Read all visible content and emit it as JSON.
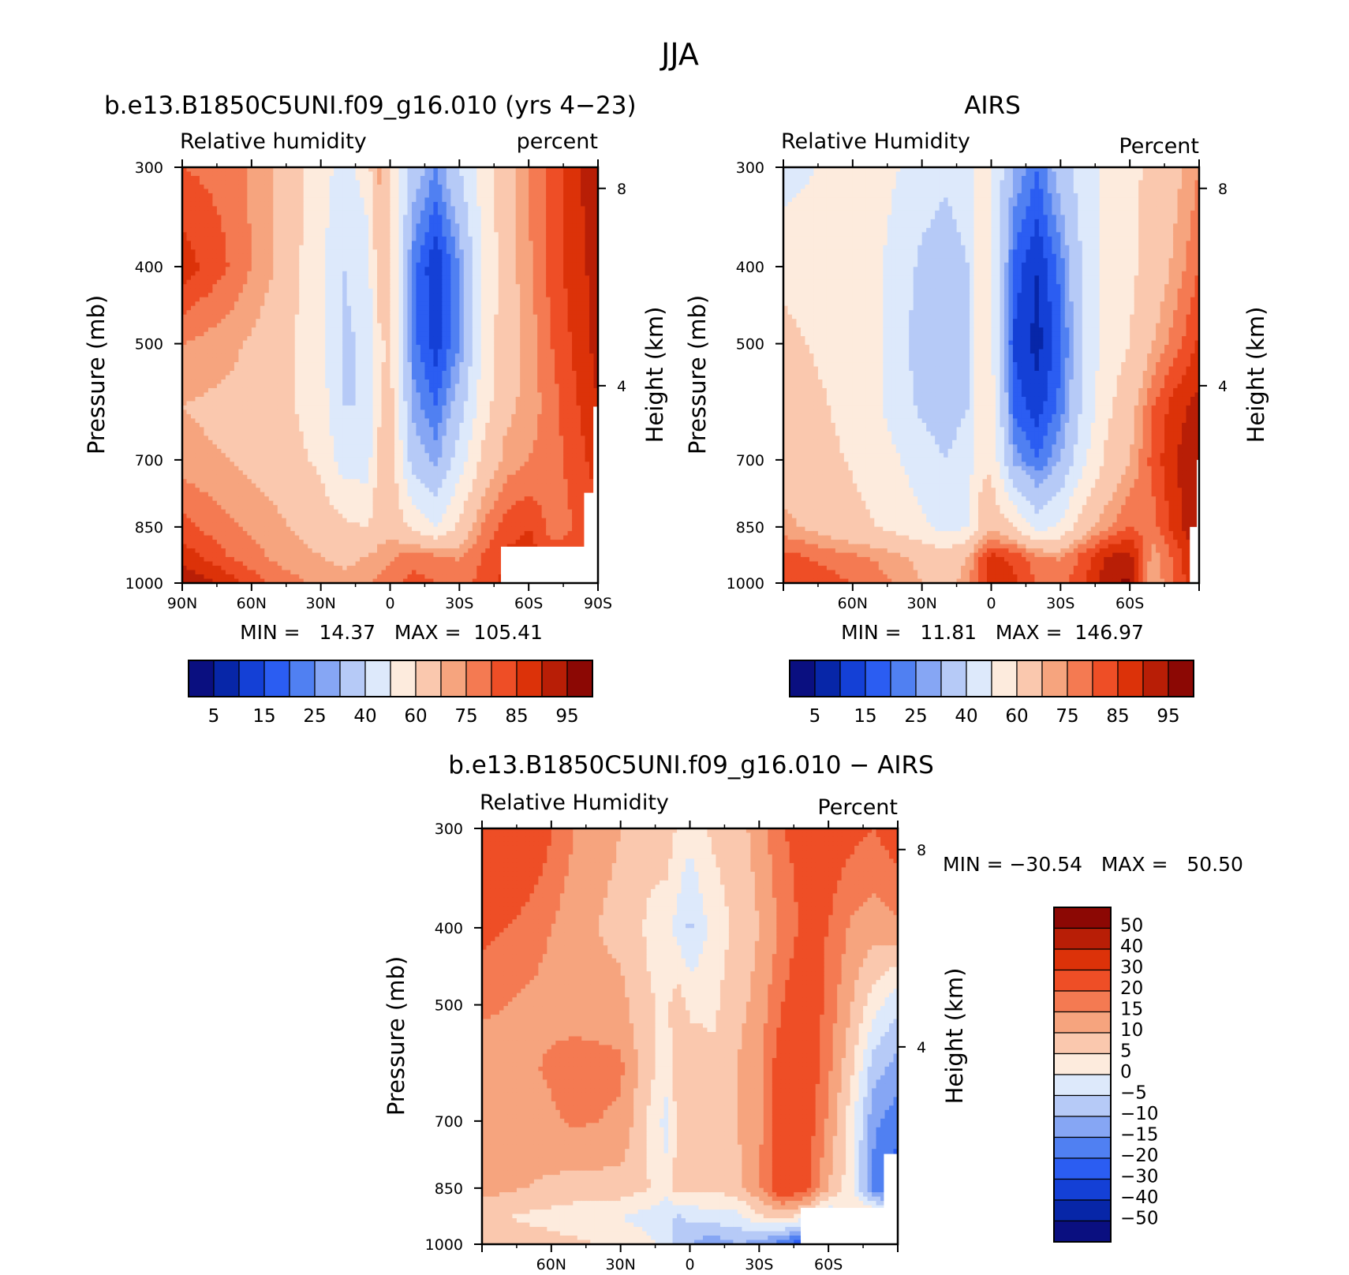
{
  "figure": {
    "title": "JJA",
    "season": "JJA"
  },
  "chart_data": [
    {
      "type": "heatmap",
      "id": "model",
      "title": "b.e13.B1850C5UNI.f09_g16.010 (yrs 4−23)",
      "left_label": "Relative humidity",
      "right_label": "percent",
      "ylabel": "Pressure (mb)",
      "ylabel_right": "Height (km)",
      "stats": "MIN =   14.37   MAX =  105.41",
      "min": 14.37,
      "max": 105.41,
      "x_ticks": [
        "90N",
        "60N",
        "30N",
        "0",
        "30S",
        "60S",
        "90S"
      ],
      "y_ticks": [
        "300",
        "400",
        "500",
        "700",
        "850",
        "1000"
      ],
      "height_ticks": [
        "8",
        "4"
      ],
      "levels": [
        5,
        10,
        15,
        20,
        25,
        30,
        40,
        50,
        60,
        70,
        75,
        80,
        85,
        90,
        95
      ],
      "colorbar_labels": [
        "5",
        "15",
        "25",
        "40",
        "60",
        "75",
        "85",
        "95"
      ],
      "x": [
        90,
        70,
        50,
        30,
        20,
        10,
        5,
        0,
        -10,
        -20,
        -30,
        -40,
        -50,
        -60,
        -70,
        -80,
        -90
      ],
      "y": [
        300,
        400,
        500,
        600,
        700,
        850,
        925,
        1000
      ],
      "z": [
        [
          80,
          78,
          70,
          55,
          45,
          55,
          72,
          60,
          35,
          25,
          40,
          55,
          65,
          75,
          82,
          88,
          95
        ],
        [
          88,
          80,
          70,
          52,
          40,
          45,
          65,
          62,
          22,
          10,
          25,
          50,
          66,
          74,
          82,
          88,
          92
        ],
        [
          75,
          72,
          66,
          52,
          38,
          42,
          58,
          62,
          22,
          12,
          25,
          52,
          66,
          72,
          80,
          86,
          92
        ],
        [
          70,
          68,
          64,
          55,
          40,
          40,
          58,
          64,
          28,
          20,
          35,
          55,
          68,
          72,
          78,
          84,
          90
        ],
        [
          72,
          70,
          66,
          58,
          45,
          45,
          62,
          66,
          35,
          28,
          45,
          62,
          72,
          75,
          78,
          82,
          88
        ],
        [
          82,
          76,
          72,
          66,
          62,
          60,
          66,
          68,
          58,
          50,
          62,
          76,
          82,
          85,
          78,
          80,
          82
        ],
        [
          88,
          80,
          74,
          70,
          68,
          70,
          72,
          74,
          78,
          76,
          74,
          80,
          86,
          88,
          82,
          82,
          82
        ],
        [
          95,
          88,
          78,
          74,
          72,
          74,
          76,
          78,
          82,
          80,
          78,
          82,
          86,
          88,
          82,
          82,
          82
        ]
      ],
      "mask": [
        {
          "x": [
            -48,
            -90
          ],
          "y": [
            900,
            1000
          ]
        },
        {
          "x": [
            -84,
            -90
          ],
          "y": [
            770,
            1000
          ]
        },
        {
          "x": [
            -88,
            -90
          ],
          "y": [
            600,
            1000
          ]
        }
      ]
    },
    {
      "type": "heatmap",
      "id": "airs",
      "title": "AIRS",
      "left_label": "Relative Humidity",
      "right_label": "Percent",
      "ylabel": "Pressure (mb)",
      "ylabel_right": "Height (km)",
      "stats": "MIN =   11.81   MAX =  146.97",
      "min": 11.81,
      "max": 146.97,
      "x_ticks": [
        "",
        "60N",
        "30N",
        "0",
        "30S",
        "60S",
        ""
      ],
      "y_ticks": [
        "300",
        "400",
        "500",
        "700",
        "850",
        "1000"
      ],
      "height_ticks": [
        "8",
        "4"
      ],
      "levels": [
        5,
        10,
        15,
        20,
        25,
        30,
        40,
        50,
        60,
        70,
        75,
        80,
        85,
        90,
        95
      ],
      "colorbar_labels": [
        "5",
        "15",
        "25",
        "40",
        "60",
        "75",
        "85",
        "95"
      ],
      "x": [
        90,
        70,
        50,
        30,
        20,
        10,
        5,
        0,
        -10,
        -20,
        -30,
        -40,
        -50,
        -60,
        -70,
        -80,
        -90
      ],
      "y": [
        300,
        400,
        500,
        600,
        700,
        850,
        925,
        1000
      ],
      "z": [
        [
          45,
          52,
          55,
          45,
          42,
          45,
          58,
          50,
          30,
          20,
          35,
          45,
          52,
          58,
          62,
          68,
          75
        ],
        [
          58,
          56,
          52,
          38,
          35,
          40,
          58,
          52,
          18,
          10,
          22,
          42,
          55,
          58,
          64,
          72,
          80
        ],
        [
          62,
          58,
          52,
          35,
          32,
          38,
          56,
          52,
          14,
          8,
          18,
          40,
          55,
          60,
          70,
          78,
          86
        ],
        [
          65,
          60,
          52,
          38,
          35,
          40,
          58,
          55,
          18,
          12,
          22,
          42,
          58,
          66,
          80,
          88,
          92
        ],
        [
          66,
          62,
          56,
          45,
          40,
          45,
          58,
          58,
          28,
          20,
          30,
          48,
          62,
          70,
          82,
          90,
          94
        ],
        [
          72,
          66,
          60,
          52,
          46,
          50,
          62,
          68,
          60,
          45,
          52,
          66,
          74,
          80,
          78,
          88,
          95
        ],
        [
          82,
          78,
          74,
          68,
          64,
          70,
          80,
          86,
          84,
          76,
          74,
          82,
          90,
          92,
          72,
          82,
          92
        ],
        [
          84,
          82,
          78,
          70,
          66,
          74,
          82,
          88,
          86,
          80,
          78,
          84,
          94,
          96,
          70,
          82,
          90
        ]
      ],
      "mask": [
        {
          "x": [
            -86,
            -90
          ],
          "y": [
            850,
            1000
          ]
        },
        {
          "x": [
            -89,
            -90
          ],
          "y": [
            700,
            1000
          ]
        }
      ]
    },
    {
      "type": "heatmap",
      "id": "diff",
      "title": "b.e13.B1850C5UNI.f09_g16.010 − AIRS",
      "left_label": "Relative Humidity",
      "right_label": "Percent",
      "ylabel": "Pressure (mb)",
      "ylabel_right": "Height (km)",
      "stats": "MIN = −30.54   MAX =   50.50",
      "min": -30.54,
      "max": 50.5,
      "x_ticks": [
        "",
        "60N",
        "30N",
        "0",
        "30S",
        "60S",
        ""
      ],
      "y_ticks": [
        "300",
        "400",
        "500",
        "700",
        "850",
        "1000"
      ],
      "height_ticks": [
        "8",
        "4"
      ],
      "levels": [
        -50,
        -40,
        -30,
        -20,
        -15,
        -10,
        -5,
        0,
        5,
        10,
        15,
        20,
        30,
        40,
        50
      ],
      "colorbar_labels": [
        "50",
        "40",
        "30",
        "20",
        "15",
        "10",
        "5",
        "0",
        "−5",
        "−10",
        "−15",
        "−20",
        "−30",
        "−40",
        "−50"
      ],
      "x": [
        90,
        70,
        50,
        30,
        20,
        10,
        5,
        0,
        -10,
        -20,
        -30,
        -40,
        -50,
        -60,
        -70,
        -80,
        -90
      ],
      "y": [
        300,
        400,
        500,
        600,
        700,
        850,
        925,
        1000
      ],
      "z": [
        [
          30,
          26,
          15,
          10,
          6,
          8,
          4,
          2,
          6,
          8,
          12,
          20,
          22,
          24,
          22,
          20,
          24
        ],
        [
          22,
          18,
          12,
          8,
          5,
          2,
          -2,
          -6,
          2,
          6,
          10,
          16,
          22,
          20,
          14,
          12,
          14
        ],
        [
          16,
          14,
          12,
          12,
          6,
          4,
          8,
          4,
          4,
          8,
          12,
          20,
          26,
          18,
          10,
          2,
          -4
        ],
        [
          12,
          14,
          18,
          16,
          8,
          2,
          10,
          8,
          6,
          10,
          14,
          24,
          26,
          16,
          6,
          -8,
          -12
        ],
        [
          10,
          12,
          16,
          14,
          6,
          -2,
          6,
          6,
          6,
          10,
          14,
          24,
          24,
          14,
          2,
          -14,
          -18
        ],
        [
          12,
          10,
          8,
          8,
          6,
          2,
          8,
          6,
          6,
          8,
          14,
          26,
          22,
          10,
          2,
          -18,
          -24
        ],
        [
          6,
          4,
          2,
          0,
          -2,
          -4,
          -6,
          -4,
          -2,
          -2,
          4,
          6,
          2,
          -6,
          6,
          8,
          6
        ],
        [
          10,
          8,
          6,
          4,
          2,
          -2,
          -8,
          -10,
          -14,
          -10,
          -12,
          -18,
          -26,
          -20,
          8,
          8,
          6
        ]
      ],
      "mask": [
        {
          "x": [
            -48,
            -90
          ],
          "y": [
            900,
            1000
          ]
        },
        {
          "x": [
            -84,
            -90
          ],
          "y": [
            770,
            1000
          ]
        }
      ]
    }
  ],
  "colors": {
    "abs_palette": [
      "#0A0F80",
      "#0726A8",
      "#1440D6",
      "#2B5DF2",
      "#5080F2",
      "#86A6F4",
      "#B6CAF7",
      "#DDE9FB",
      "#FDEBDD",
      "#FAC8AE",
      "#F6A47E",
      "#F47A52",
      "#EE4E26",
      "#DC3209",
      "#B81E06",
      "#8C0804"
    ],
    "diff_palette": [
      "#0A0F80",
      "#0726A8",
      "#1440D6",
      "#2B5DF2",
      "#5080F2",
      "#86A6F4",
      "#B6CAF7",
      "#DDE9FB",
      "#FDEBDD",
      "#FAC8AE",
      "#F6A47E",
      "#F47A52",
      "#EE4E26",
      "#DC3209",
      "#B81E06",
      "#8C0804"
    ]
  }
}
